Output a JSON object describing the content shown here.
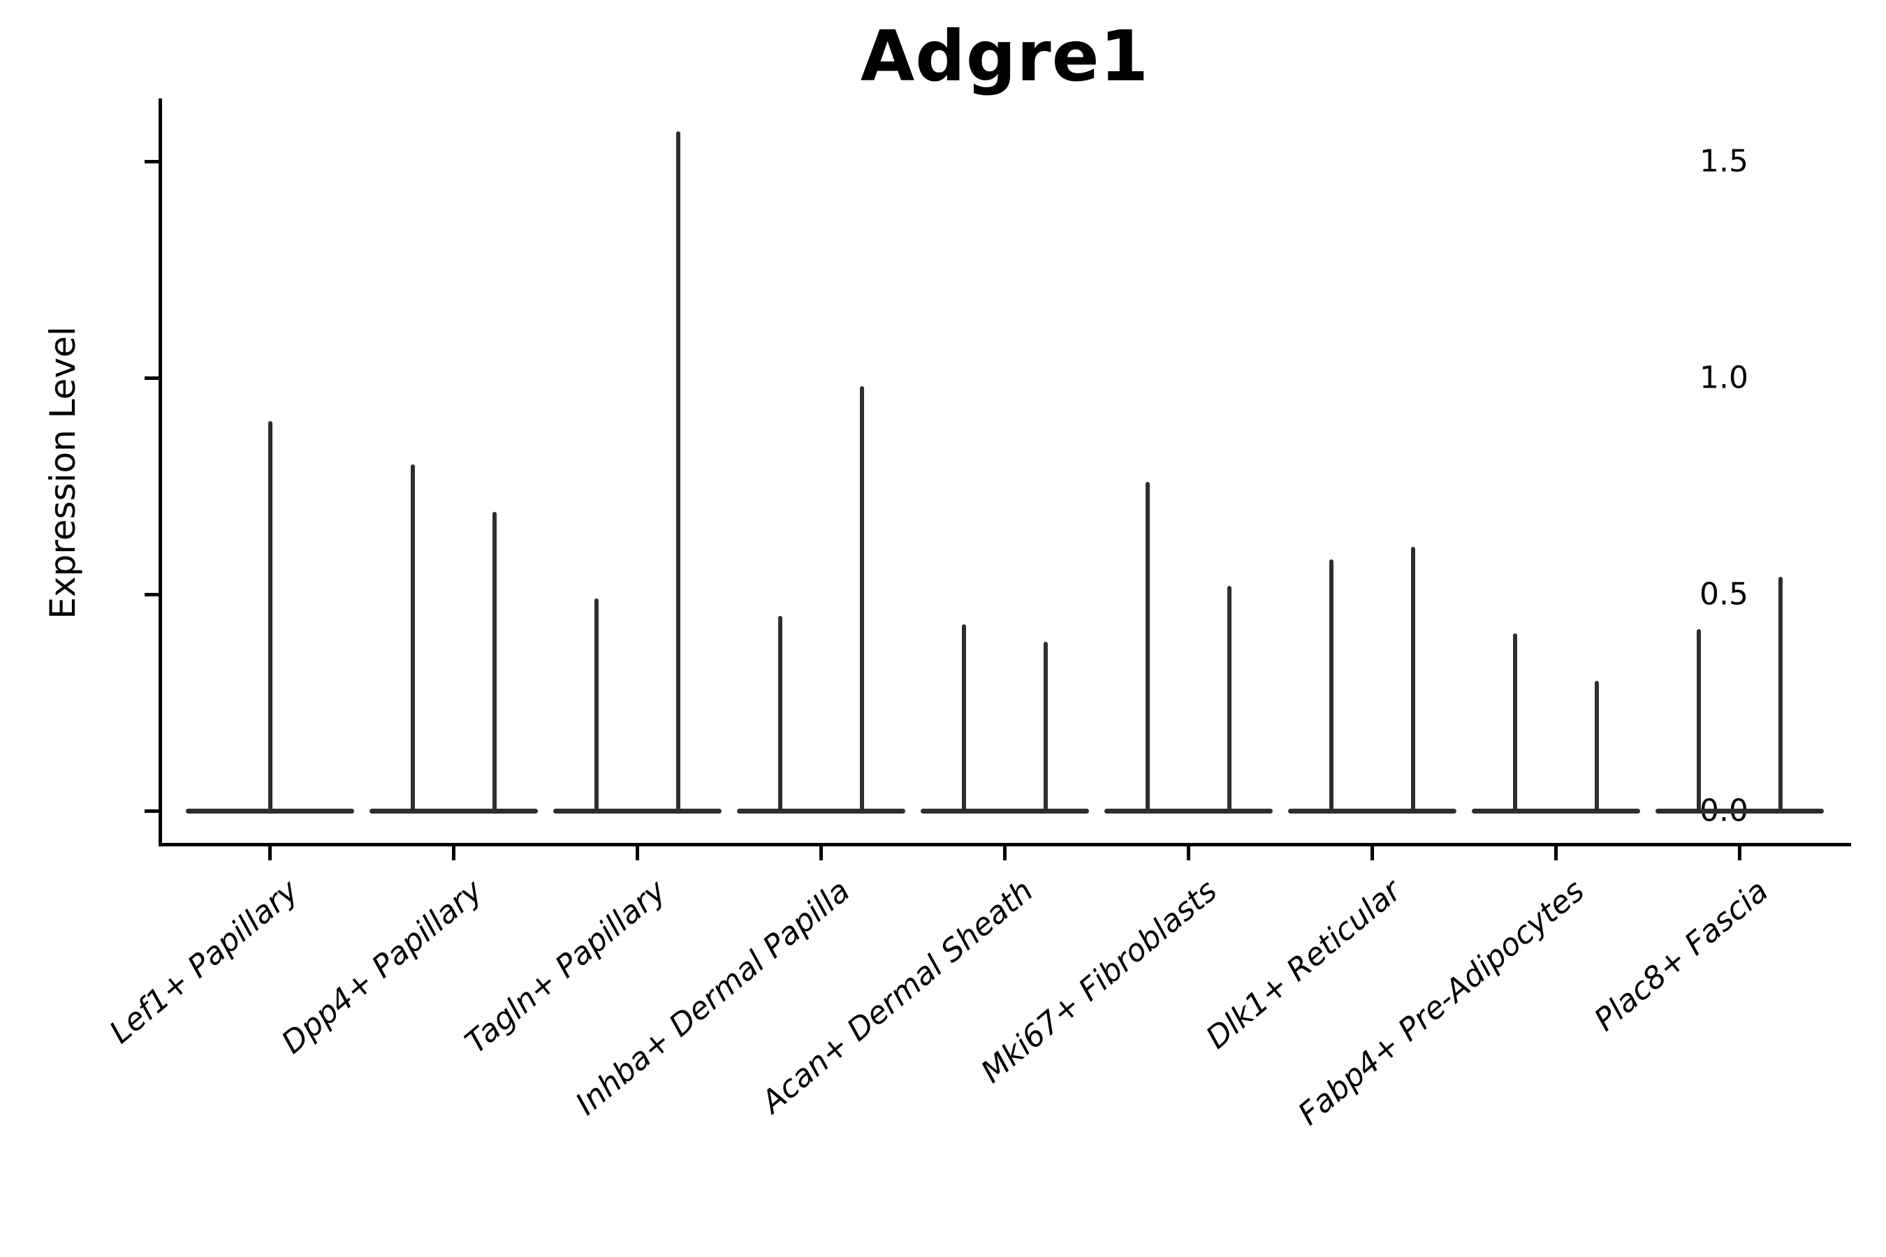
{
  "chart_data": {
    "type": "violin",
    "title": "Adgre1",
    "ylabel": "Expression Level",
    "xlabel": "",
    "grid": false,
    "legend": null,
    "ytick_labels": [
      "0.0",
      "0.5",
      "1.0",
      "1.5"
    ],
    "ytick_values": [
      0.0,
      0.5,
      1.0,
      1.5
    ],
    "ylim": [
      -0.082,
      1.645
    ],
    "xlim": [
      -0.607,
      8.607
    ],
    "categories": [
      "Lef1+ Papillary",
      "Dpp4+ Papillary",
      "Tagln+ Papillary",
      "Inhba+ Dermal Papilla",
      "Acan+ Dermal Sheath",
      "Mki67+ Fibroblasts",
      "Dlk1+ Reticular",
      "Fabp4+ Pre-Adipocytes",
      "Plac8+ Fascia"
    ],
    "violin_max_halfwidth": 0.46,
    "series": [
      {
        "category": "Lef1+ Papillary",
        "spikes": [
          {
            "offset": 0.0,
            "max": 0.9
          }
        ]
      },
      {
        "category": "Dpp4+ Papillary",
        "spikes": [
          {
            "offset": -0.224,
            "max": 0.8
          },
          {
            "offset": 0.224,
            "max": 0.69
          }
        ]
      },
      {
        "category": "Tagln+ Papillary",
        "spikes": [
          {
            "offset": -0.224,
            "max": 0.49
          },
          {
            "offset": 0.224,
            "max": 1.57
          }
        ]
      },
      {
        "category": "Inhba+ Dermal Papilla",
        "spikes": [
          {
            "offset": -0.224,
            "max": 0.45
          },
          {
            "offset": 0.224,
            "max": 0.98
          }
        ]
      },
      {
        "category": "Acan+ Dermal Sheath",
        "spikes": [
          {
            "offset": -0.224,
            "max": 0.43
          },
          {
            "offset": 0.224,
            "max": 0.39
          }
        ]
      },
      {
        "category": "Mki67+ Fibroblasts",
        "spikes": [
          {
            "offset": -0.224,
            "max": 0.76
          },
          {
            "offset": 0.224,
            "max": 0.52
          }
        ]
      },
      {
        "category": "Dlk1+ Reticular",
        "spikes": [
          {
            "offset": -0.224,
            "max": 0.58
          },
          {
            "offset": 0.224,
            "max": 0.61
          }
        ]
      },
      {
        "category": "Fabp4+ Pre-Adipocytes",
        "spikes": [
          {
            "offset": -0.224,
            "max": 0.41
          },
          {
            "offset": 0.224,
            "max": 0.3
          }
        ]
      },
      {
        "category": "Plac8+ Fascia",
        "spikes": [
          {
            "offset": -0.224,
            "max": 0.42
          },
          {
            "offset": 0.224,
            "max": 0.54
          }
        ]
      }
    ],
    "colors": {
      "violin": "#2e2e2e",
      "axis": "#000000",
      "text": "#000000",
      "background": "#ffffff"
    }
  }
}
